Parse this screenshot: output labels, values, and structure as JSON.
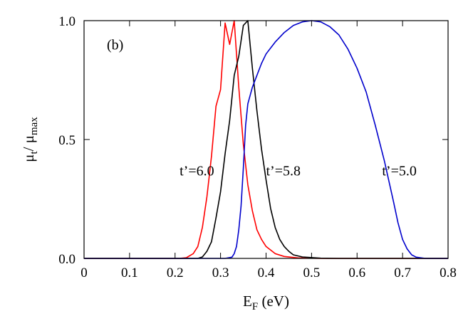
{
  "chart_data": {
    "type": "line",
    "title": "",
    "panel_label": "(b)",
    "xlabel": {
      "main": "E",
      "sub": "F",
      "suffix": " (eV)"
    },
    "ylabel": {
      "num_main": "μ",
      "num_sub": "t",
      "sep": "/ ",
      "den_main": "μ",
      "den_sub": "max"
    },
    "xlim": [
      0,
      0.8
    ],
    "ylim": [
      0,
      1.0
    ],
    "x_ticks": [
      0,
      0.1,
      0.2,
      0.3,
      0.4,
      0.5,
      0.6,
      0.7,
      0.8
    ],
    "x_tick_labels": [
      "0",
      "0.1",
      "0.2",
      "0.3",
      "0.4",
      "0.5",
      "0.6",
      "0.7",
      "0.8"
    ],
    "y_ticks": [
      0,
      0.5,
      1.0
    ],
    "y_tick_labels": [
      "0.0",
      "0.5",
      "1.0"
    ],
    "grid": false,
    "legend": "none",
    "series": [
      {
        "color": "#ff0000",
        "label": "t’=6.0",
        "label_at": [
          0.21,
          0.37
        ],
        "points": [
          [
            0,
            0
          ],
          [
            0.21,
            0
          ],
          [
            0.225,
            0.003
          ],
          [
            0.24,
            0.02
          ],
          [
            0.25,
            0.05
          ],
          [
            0.26,
            0.13
          ],
          [
            0.27,
            0.26
          ],
          [
            0.28,
            0.43
          ],
          [
            0.29,
            0.64
          ],
          [
            0.3,
            0.71
          ],
          [
            0.31,
            0.99
          ],
          [
            0.32,
            0.9
          ],
          [
            0.33,
            1.0
          ],
          [
            0.34,
            0.72
          ],
          [
            0.35,
            0.48
          ],
          [
            0.36,
            0.31
          ],
          [
            0.37,
            0.2
          ],
          [
            0.38,
            0.12
          ],
          [
            0.39,
            0.08
          ],
          [
            0.4,
            0.05
          ],
          [
            0.41,
            0.035
          ],
          [
            0.42,
            0.02
          ],
          [
            0.44,
            0.008
          ],
          [
            0.47,
            0.002
          ],
          [
            0.52,
            0
          ],
          [
            0.8,
            0
          ]
        ]
      },
      {
        "color": "#000000",
        "label": "t’=5.8",
        "label_at": [
          0.4,
          0.37
        ],
        "points": [
          [
            0,
            0
          ],
          [
            0.25,
            0
          ],
          [
            0.26,
            0.006
          ],
          [
            0.27,
            0.03
          ],
          [
            0.28,
            0.07
          ],
          [
            0.29,
            0.17
          ],
          [
            0.3,
            0.28
          ],
          [
            0.31,
            0.44
          ],
          [
            0.32,
            0.58
          ],
          [
            0.33,
            0.77
          ],
          [
            0.34,
            0.85
          ],
          [
            0.35,
            0.98
          ],
          [
            0.36,
            1.0
          ],
          [
            0.37,
            0.8
          ],
          [
            0.38,
            0.62
          ],
          [
            0.39,
            0.46
          ],
          [
            0.4,
            0.33
          ],
          [
            0.41,
            0.21
          ],
          [
            0.42,
            0.13
          ],
          [
            0.43,
            0.08
          ],
          [
            0.44,
            0.05
          ],
          [
            0.45,
            0.03
          ],
          [
            0.46,
            0.015
          ],
          [
            0.48,
            0.006
          ],
          [
            0.52,
            0.001
          ],
          [
            0.56,
            0
          ],
          [
            0.8,
            0
          ]
        ]
      },
      {
        "color": "#0000cc",
        "label": "t’=5.0",
        "label_at": [
          0.655,
          0.37
        ],
        "points": [
          [
            0,
            0
          ],
          [
            0.31,
            0
          ],
          [
            0.325,
            0.005
          ],
          [
            0.33,
            0.02
          ],
          [
            0.335,
            0.05
          ],
          [
            0.34,
            0.12
          ],
          [
            0.345,
            0.22
          ],
          [
            0.35,
            0.38
          ],
          [
            0.355,
            0.56
          ],
          [
            0.36,
            0.65
          ],
          [
            0.37,
            0.72
          ],
          [
            0.38,
            0.77
          ],
          [
            0.39,
            0.82
          ],
          [
            0.4,
            0.86
          ],
          [
            0.42,
            0.91
          ],
          [
            0.44,
            0.95
          ],
          [
            0.46,
            0.98
          ],
          [
            0.48,
            0.995
          ],
          [
            0.5,
            1.0
          ],
          [
            0.52,
            0.995
          ],
          [
            0.54,
            0.975
          ],
          [
            0.56,
            0.94
          ],
          [
            0.58,
            0.88
          ],
          [
            0.6,
            0.8
          ],
          [
            0.62,
            0.7
          ],
          [
            0.64,
            0.56
          ],
          [
            0.66,
            0.41
          ],
          [
            0.68,
            0.24
          ],
          [
            0.69,
            0.15
          ],
          [
            0.7,
            0.08
          ],
          [
            0.71,
            0.04
          ],
          [
            0.72,
            0.015
          ],
          [
            0.73,
            0.005
          ],
          [
            0.75,
            0
          ],
          [
            0.8,
            0
          ]
        ]
      }
    ]
  }
}
